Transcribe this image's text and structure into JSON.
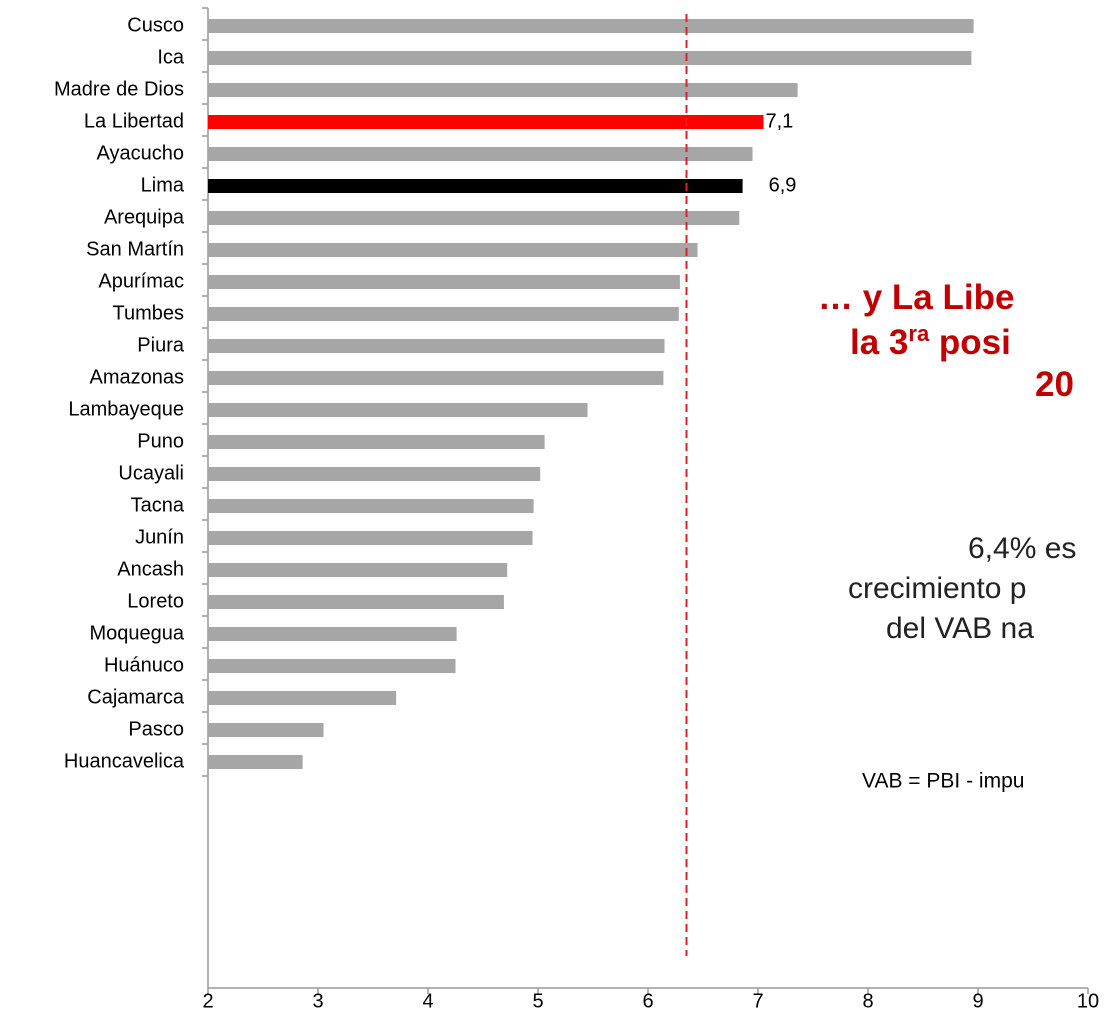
{
  "chart_data": {
    "type": "bar",
    "orientation": "horizontal",
    "categories": [
      "Cusco",
      "Ica",
      "Madre de Dios",
      "La Libertad",
      "Ayacucho",
      "Lima",
      "Arequipa",
      "San Martín",
      "Apurímac",
      "Tumbes",
      "Piura",
      "Amazonas",
      "Lambayeque",
      "Puno",
      "Ucayali",
      "Tacna",
      "Junín",
      "Ancash",
      "Loreto",
      "Moquegua",
      "Huánuco",
      "Cajamarca",
      "Pasco",
      "Huancavelica"
    ],
    "values": [
      8.96,
      8.94,
      7.36,
      7.05,
      6.95,
      6.86,
      6.83,
      6.45,
      6.29,
      6.28,
      6.15,
      6.14,
      5.45,
      5.06,
      5.02,
      4.96,
      4.95,
      4.72,
      4.69,
      4.26,
      4.25,
      3.71,
      3.05,
      2.86
    ],
    "value_labels": [
      null,
      null,
      null,
      "7,1",
      null,
      "6,9",
      null,
      null,
      null,
      null,
      null,
      null,
      null,
      null,
      null,
      null,
      null,
      null,
      null,
      null,
      null,
      null,
      null,
      null
    ],
    "colors": [
      "#a6a6a6",
      "#a6a6a6",
      "#a6a6a6",
      "#ff0000",
      "#a6a6a6",
      "#000000",
      "#a6a6a6",
      "#a6a6a6",
      "#a6a6a6",
      "#a6a6a6",
      "#a6a6a6",
      "#a6a6a6",
      "#a6a6a6",
      "#a6a6a6",
      "#a6a6a6",
      "#a6a6a6",
      "#a6a6a6",
      "#a6a6a6",
      "#a6a6a6",
      "#a6a6a6",
      "#a6a6a6",
      "#a6a6a6",
      "#a6a6a6",
      "#a6a6a6"
    ],
    "xlim": [
      2,
      10
    ],
    "xticks": [
      2,
      3,
      4,
      5,
      6,
      7,
      8,
      9,
      10
    ],
    "reference_line": {
      "value": 6.35,
      "color": "#e02020"
    },
    "annotations": {
      "heading": [
        [
          "… y La Libe"
        ],
        [
          "la 3",
          "ra",
          " posi"
        ],
        [
          "20"
        ]
      ],
      "body": [
        "6,4% es",
        "crecimiento p",
        "del VAB na"
      ],
      "note": "VAB = PBI - impu"
    }
  }
}
